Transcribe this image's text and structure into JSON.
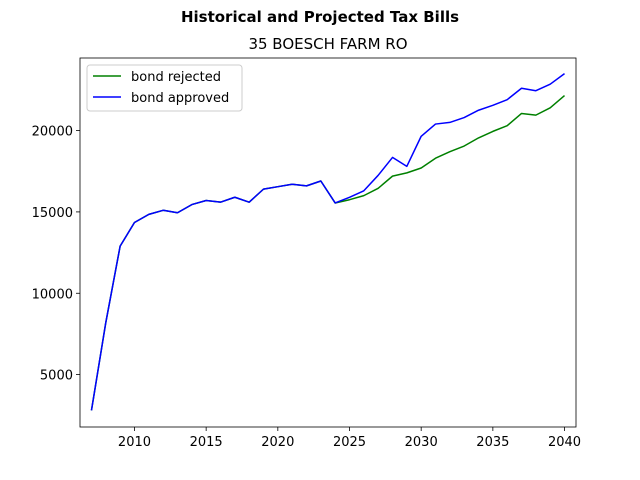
{
  "chart_data": {
    "type": "line",
    "title": "Historical and Projected Tax Bills",
    "subtitle": "35 BOESCH FARM RO",
    "xlabel": "",
    "ylabel": "",
    "xlim": [
      2006.2,
      2040.8
    ],
    "ylim": [
      1780,
      24460
    ],
    "x_ticks": [
      2010,
      2015,
      2020,
      2025,
      2030,
      2035,
      2040
    ],
    "y_ticks": [
      5000,
      10000,
      15000,
      20000
    ],
    "grid": false,
    "legend_position": "top-left",
    "series": [
      {
        "name": "bond rejected",
        "color": "#008000",
        "x": [
          2007,
          2008,
          2009,
          2010,
          2011,
          2012,
          2013,
          2014,
          2015,
          2016,
          2017,
          2018,
          2019,
          2020,
          2021,
          2022,
          2023,
          2024,
          2025,
          2026,
          2027,
          2028,
          2029,
          2030,
          2031,
          2032,
          2033,
          2034,
          2035,
          2036,
          2037,
          2038,
          2039,
          2040
        ],
        "values": [
          2800,
          8200,
          12900,
          14350,
          14850,
          15100,
          14950,
          15450,
          15700,
          15600,
          15900,
          15600,
          16400,
          16550,
          16700,
          16600,
          16900,
          15550,
          15750,
          16000,
          16450,
          17200,
          17400,
          17700,
          18300,
          18700,
          19050,
          19550,
          19950,
          20300,
          21050,
          20950,
          21400,
          22150
        ]
      },
      {
        "name": "bond approved",
        "color": "#0000ff",
        "x": [
          2007,
          2008,
          2009,
          2010,
          2011,
          2012,
          2013,
          2014,
          2015,
          2016,
          2017,
          2018,
          2019,
          2020,
          2021,
          2022,
          2023,
          2024,
          2025,
          2026,
          2027,
          2028,
          2029,
          2030,
          2031,
          2032,
          2033,
          2034,
          2035,
          2036,
          2037,
          2038,
          2039,
          2040
        ],
        "values": [
          2800,
          8200,
          12900,
          14350,
          14850,
          15100,
          14950,
          15450,
          15700,
          15600,
          15900,
          15600,
          16400,
          16550,
          16700,
          16600,
          16900,
          15550,
          15900,
          16300,
          17250,
          18350,
          17800,
          19650,
          20400,
          20500,
          20800,
          21250,
          21550,
          21900,
          22600,
          22450,
          22850,
          23500
        ]
      }
    ]
  }
}
